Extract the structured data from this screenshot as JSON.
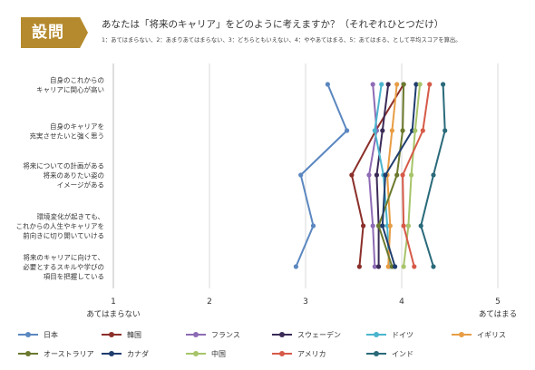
{
  "header": {
    "badge": "設問",
    "question": "あなたは「将来のキャリア」をどのように考えますか？（それぞれひとつだけ）",
    "note": "1：あてはまらない、2：あまりあてはまらない、3：どちらともいえない、4：ややあてはまる、5：あてはまる、として平均スコアを算出。"
  },
  "chart_data": {
    "type": "line",
    "orientation": "horizontal",
    "categories": [
      "自身のこれからの\nキャリアに関心が高い",
      "自身のキャリアを\n充実させたいと強く思う",
      "将来についての計画がある\n将来のありたい姿の\nイメージがある",
      "環境変化が起きても、\nこれからの人生やキャリアを\n前向きに切り開いていける",
      "将来のキャリアに向けて、\n必要とするスキルや学びの\n項目を把握している"
    ],
    "xlim": [
      1,
      5
    ],
    "xticks": [
      "1",
      "2",
      "3",
      "4",
      "5"
    ],
    "xlabel_left": "あてはまらない",
    "xlabel_right": "あてはまる",
    "grid": true,
    "legend_position": "bottom",
    "series": [
      {
        "name": "日本",
        "color": "#5b87c0",
        "values": [
          3.23,
          3.43,
          2.95,
          3.08,
          2.9
        ]
      },
      {
        "name": "韓国",
        "color": "#8b2f2a",
        "values": [
          4.02,
          3.73,
          3.48,
          3.6,
          3.56
        ]
      },
      {
        "name": "フランス",
        "color": "#8e6bb5",
        "values": [
          3.7,
          3.74,
          3.66,
          3.7,
          3.72
        ]
      },
      {
        "name": "スウェーデン",
        "color": "#3a2b57",
        "values": [
          3.86,
          3.8,
          3.74,
          3.76,
          3.76
        ]
      },
      {
        "name": "ドイツ",
        "color": "#4bb5ce",
        "values": [
          3.79,
          3.72,
          3.81,
          3.85,
          3.87
        ]
      },
      {
        "name": "イギリス",
        "color": "#e89d45",
        "values": [
          3.95,
          3.9,
          3.85,
          3.88,
          3.86
        ]
      },
      {
        "name": "オーストラリア",
        "color": "#6b7a2e",
        "values": [
          4.02,
          4.01,
          3.95,
          3.76,
          3.9
        ]
      },
      {
        "name": "カナダ",
        "color": "#1f3d6e",
        "values": [
          4.15,
          4.11,
          3.83,
          3.8,
          3.93
        ]
      },
      {
        "name": "中国",
        "color": "#a7c46a",
        "values": [
          4.19,
          4.14,
          4.1,
          4.07,
          4.02
        ]
      },
      {
        "name": "アメリカ",
        "color": "#d65a48",
        "values": [
          4.29,
          4.22,
          4.01,
          4.02,
          4.13
        ]
      },
      {
        "name": "インド",
        "color": "#2a6a7a",
        "values": [
          4.43,
          4.45,
          4.33,
          4.2,
          4.33
        ]
      }
    ]
  }
}
